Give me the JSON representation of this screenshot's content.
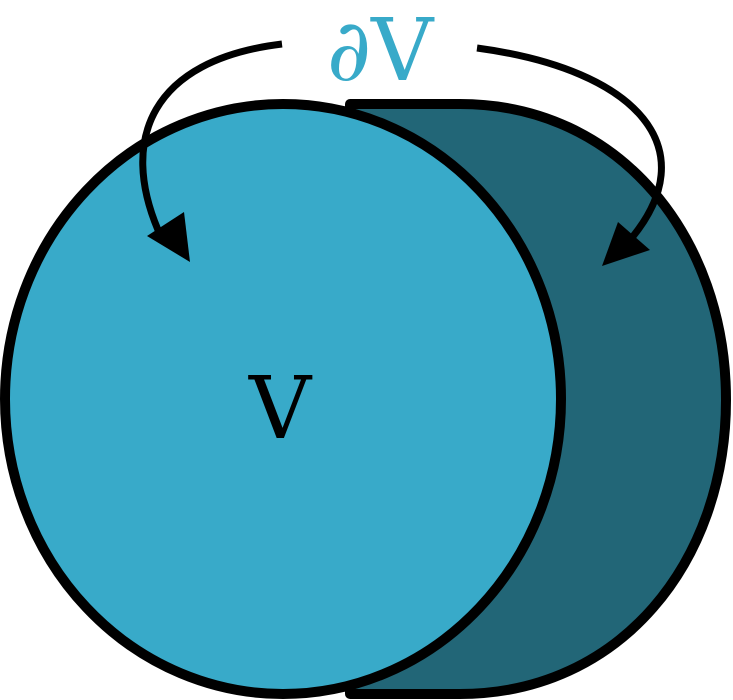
{
  "labels": {
    "volume": "V",
    "boundary": "∂V"
  },
  "colors": {
    "volume_fill": "#38aac9",
    "boundary_side_fill": "#226677",
    "outline": "#000000",
    "boundary_label": "#38aac9",
    "volume_label": "#000000",
    "arrow": "#000000"
  },
  "icons": {
    "arrow_left": "curved-arrow-icon",
    "arrow_right": "curved-arrow-icon"
  }
}
